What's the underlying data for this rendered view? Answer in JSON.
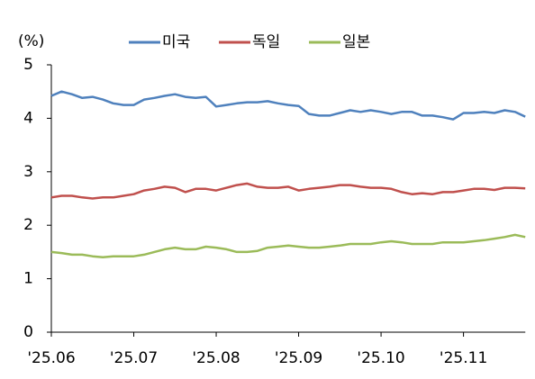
{
  "chart_data": {
    "type": "line",
    "y_label": "(%)",
    "categories": [
      "'25.06",
      null,
      null,
      null,
      null,
      null,
      null,
      null,
      "'25.07",
      null,
      null,
      null,
      null,
      null,
      null,
      null,
      "'25.08",
      null,
      null,
      null,
      null,
      null,
      null,
      null,
      "'25.09",
      null,
      null,
      null,
      null,
      null,
      null,
      null,
      "'25.10",
      null,
      null,
      null,
      null,
      null,
      null,
      null,
      "'25.11",
      null,
      null,
      null,
      null,
      null,
      null
    ],
    "series": [
      {
        "name": "미국",
        "color": "#4f81bd",
        "values": [
          4.42,
          4.5,
          4.45,
          4.38,
          4.4,
          4.35,
          4.28,
          4.25,
          4.25,
          4.35,
          4.38,
          4.42,
          4.45,
          4.4,
          4.38,
          4.4,
          4.22,
          4.25,
          4.28,
          4.3,
          4.3,
          4.32,
          4.28,
          4.25,
          4.23,
          4.08,
          4.05,
          4.05,
          4.1,
          4.15,
          4.12,
          4.15,
          4.12,
          4.08,
          4.12,
          4.12,
          4.05,
          4.05,
          4.02,
          3.98,
          4.1,
          4.1,
          4.12,
          4.1,
          4.15,
          4.12,
          4.03
        ]
      },
      {
        "name": "독일",
        "color": "#c0504d",
        "values": [
          2.52,
          2.55,
          2.55,
          2.52,
          2.5,
          2.52,
          2.52,
          2.55,
          2.58,
          2.65,
          2.68,
          2.72,
          2.7,
          2.62,
          2.68,
          2.68,
          2.65,
          2.7,
          2.75,
          2.78,
          2.72,
          2.7,
          2.7,
          2.72,
          2.65,
          2.68,
          2.7,
          2.72,
          2.75,
          2.75,
          2.72,
          2.7,
          2.7,
          2.68,
          2.62,
          2.58,
          2.6,
          2.58,
          2.62,
          2.62,
          2.65,
          2.68,
          2.68,
          2.66,
          2.7,
          2.7,
          2.69
        ]
      },
      {
        "name": "일본",
        "color": "#9bbb59",
        "values": [
          1.5,
          1.48,
          1.45,
          1.45,
          1.42,
          1.4,
          1.42,
          1.42,
          1.42,
          1.45,
          1.5,
          1.55,
          1.58,
          1.55,
          1.55,
          1.6,
          1.58,
          1.55,
          1.5,
          1.5,
          1.52,
          1.58,
          1.6,
          1.62,
          1.6,
          1.58,
          1.58,
          1.6,
          1.62,
          1.65,
          1.65,
          1.65,
          1.68,
          1.7,
          1.68,
          1.65,
          1.65,
          1.65,
          1.68,
          1.68,
          1.68,
          1.7,
          1.72,
          1.75,
          1.78,
          1.82,
          1.78
        ]
      }
    ],
    "ylim": [
      0,
      5
    ],
    "yticks": [
      0,
      1,
      2,
      3,
      4,
      5
    ],
    "grid": false,
    "legend": "top"
  }
}
